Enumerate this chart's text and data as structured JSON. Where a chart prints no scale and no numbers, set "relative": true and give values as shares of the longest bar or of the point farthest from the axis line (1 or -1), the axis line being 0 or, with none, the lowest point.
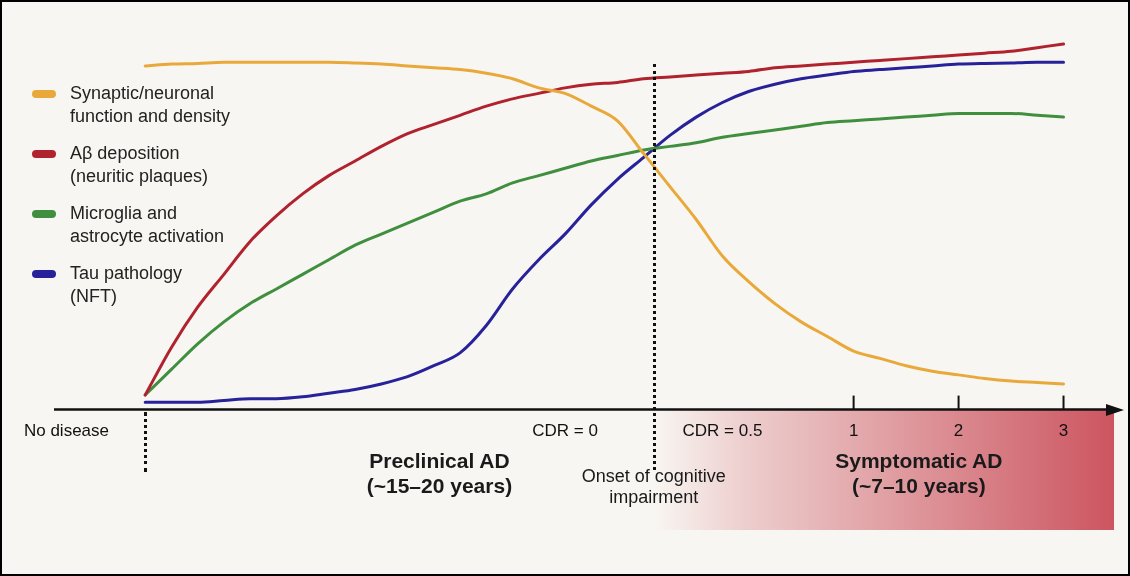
{
  "chart_data": {
    "type": "line",
    "relative": true,
    "categories": [
      null,
      null,
      "No disease",
      null,
      null,
      null,
      null,
      null,
      null,
      null,
      null,
      null,
      null,
      null,
      null,
      null,
      null,
      null,
      null,
      null,
      null,
      "CDR = 0",
      null,
      null,
      null,
      null,
      null,
      "CDR = 0.5",
      null,
      null,
      null,
      null,
      "1",
      null,
      null,
      null,
      "2",
      null,
      null,
      null,
      "3",
      null,
      null
    ],
    "legend": "top left",
    "marker": "none",
    "line_style": "solid",
    "series": [
      {
        "name": "Synaptic/neuronal function and density",
        "color": "#e8a93a",
        "values": [
          null,
          null,
          null,
          null,
          null,
          0.94,
          0.945,
          0.947,
          0.95,
          0.95,
          0.95,
          0.95,
          0.95,
          0.948,
          0.945,
          0.94,
          0.935,
          0.93,
          0.92,
          0.905,
          0.88,
          0.865,
          0.83,
          0.79,
          0.7,
          0.61,
          0.52,
          0.42,
          0.35,
          0.29,
          0.24,
          0.2,
          0.16,
          0.14,
          0.12,
          0.105,
          0.095,
          0.085,
          0.078,
          0.074,
          0.07,
          null,
          null
        ]
      },
      {
        "name": "Aβ deposition (neuritic plaques)",
        "color": "#b0222e",
        "values": [
          null,
          null,
          null,
          null,
          null,
          0.04,
          0.17,
          0.28,
          0.37,
          0.46,
          0.53,
          0.59,
          0.64,
          0.68,
          0.72,
          0.755,
          0.78,
          0.805,
          0.83,
          0.85,
          0.865,
          0.88,
          0.89,
          0.895,
          0.905,
          0.91,
          0.915,
          0.92,
          0.925,
          0.935,
          0.94,
          0.945,
          0.95,
          0.955,
          0.96,
          0.965,
          0.97,
          0.975,
          0.98,
          0.99,
          1.0,
          null,
          null
        ]
      },
      {
        "name": "Microglia and astrocyte activation",
        "color": "#3f8f3f",
        "values": [
          null,
          null,
          null,
          null,
          null,
          0.04,
          0.11,
          0.18,
          0.24,
          0.29,
          0.33,
          0.37,
          0.41,
          0.45,
          0.48,
          0.51,
          0.54,
          0.57,
          0.59,
          0.62,
          0.64,
          0.66,
          0.68,
          0.695,
          0.71,
          0.72,
          0.73,
          0.745,
          0.755,
          0.765,
          0.775,
          0.785,
          0.79,
          0.795,
          0.8,
          0.805,
          0.81,
          0.81,
          0.81,
          0.805,
          0.8,
          null,
          null
        ]
      },
      {
        "name": "Tau pathology (NFT)",
        "color": "#28229a",
        "values": [
          null,
          null,
          null,
          null,
          null,
          0.02,
          0.02,
          0.02,
          0.025,
          0.03,
          0.03,
          0.035,
          0.045,
          0.055,
          0.07,
          0.09,
          0.12,
          0.155,
          0.23,
          0.33,
          0.41,
          0.48,
          0.56,
          0.63,
          0.69,
          0.75,
          0.8,
          0.84,
          0.87,
          0.89,
          0.905,
          0.915,
          0.925,
          0.93,
          0.935,
          0.94,
          0.945,
          0.947,
          0.948,
          0.95,
          0.95,
          null,
          null
        ]
      }
    ],
    "annotations": [
      "Preclinical AD (~15–20 years)",
      "Onset of cognitive impairment",
      "Symptomatic AD (~7–10 years)"
    ]
  }
}
